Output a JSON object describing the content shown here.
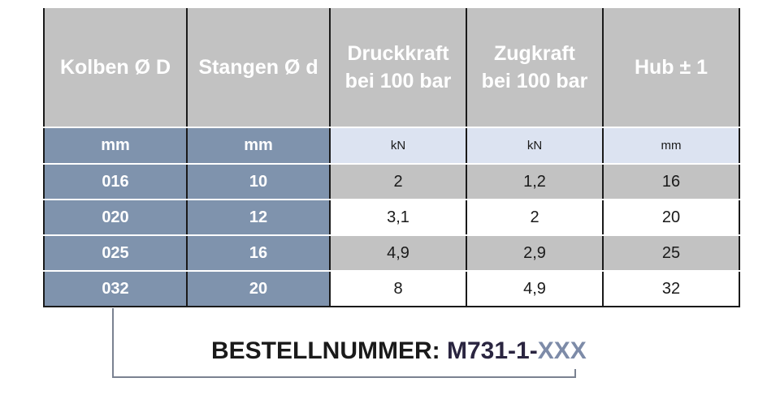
{
  "table": {
    "headers": [
      {
        "line1": "Kolben Ø D",
        "line2": ""
      },
      {
        "line1": "Stangen Ø d",
        "line2": ""
      },
      {
        "line1": "Druckkraft",
        "line2": "bei 100 bar"
      },
      {
        "line1": "Zugkraft",
        "line2": "bei 100 bar"
      },
      {
        "line1": "Hub ± 1",
        "line2": ""
      }
    ],
    "units": [
      "mm",
      "mm",
      "kN",
      "kN",
      "mm"
    ],
    "rows": [
      [
        "016",
        "10",
        "2",
        "1,2",
        "16"
      ],
      [
        "020",
        "12",
        "3,1",
        "2",
        "20"
      ],
      [
        "025",
        "16",
        "4,9",
        "2,9",
        "25"
      ],
      [
        "032",
        "20",
        "8",
        "4,9",
        "32"
      ]
    ]
  },
  "order": {
    "label": "BESTELLNUMMER:",
    "prefix": "M731-1-",
    "variable": "XXX"
  },
  "colors": {
    "header_bg": "#c2c2c2",
    "key_column_bg": "#7f93ad",
    "unit_row_bg": "#dce3f1",
    "stripe_bg": "#c2c2c2",
    "bracket": "#7a8291",
    "variable_text": "#7d8ba8"
  }
}
